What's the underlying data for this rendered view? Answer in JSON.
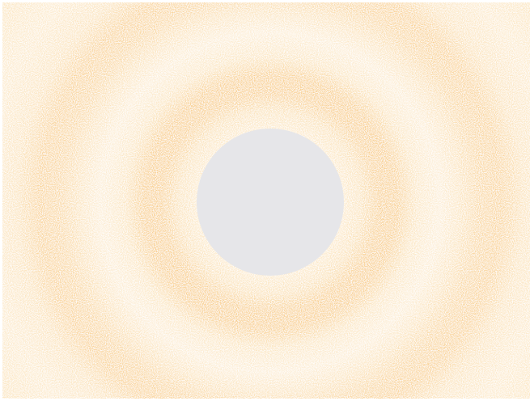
{
  "scene": {
    "kind": "ring-diffraction-pattern",
    "description_colors": {
      "background": "#fbe7c2",
      "ring_light": "#fdedd1",
      "ring_dark": "#f8c577",
      "center_disc": "#e6e6e9",
      "border": "#ffffff"
    },
    "rings": [
      {
        "id": "inner-bright",
        "tone": "light"
      },
      {
        "id": "dark-1",
        "tone": "dark"
      },
      {
        "id": "bright-2",
        "tone": "light"
      },
      {
        "id": "dark-2",
        "tone": "dark"
      },
      {
        "id": "outer-bright",
        "tone": "light"
      }
    ],
    "center": {
      "name": "beam-stop-disc"
    }
  }
}
